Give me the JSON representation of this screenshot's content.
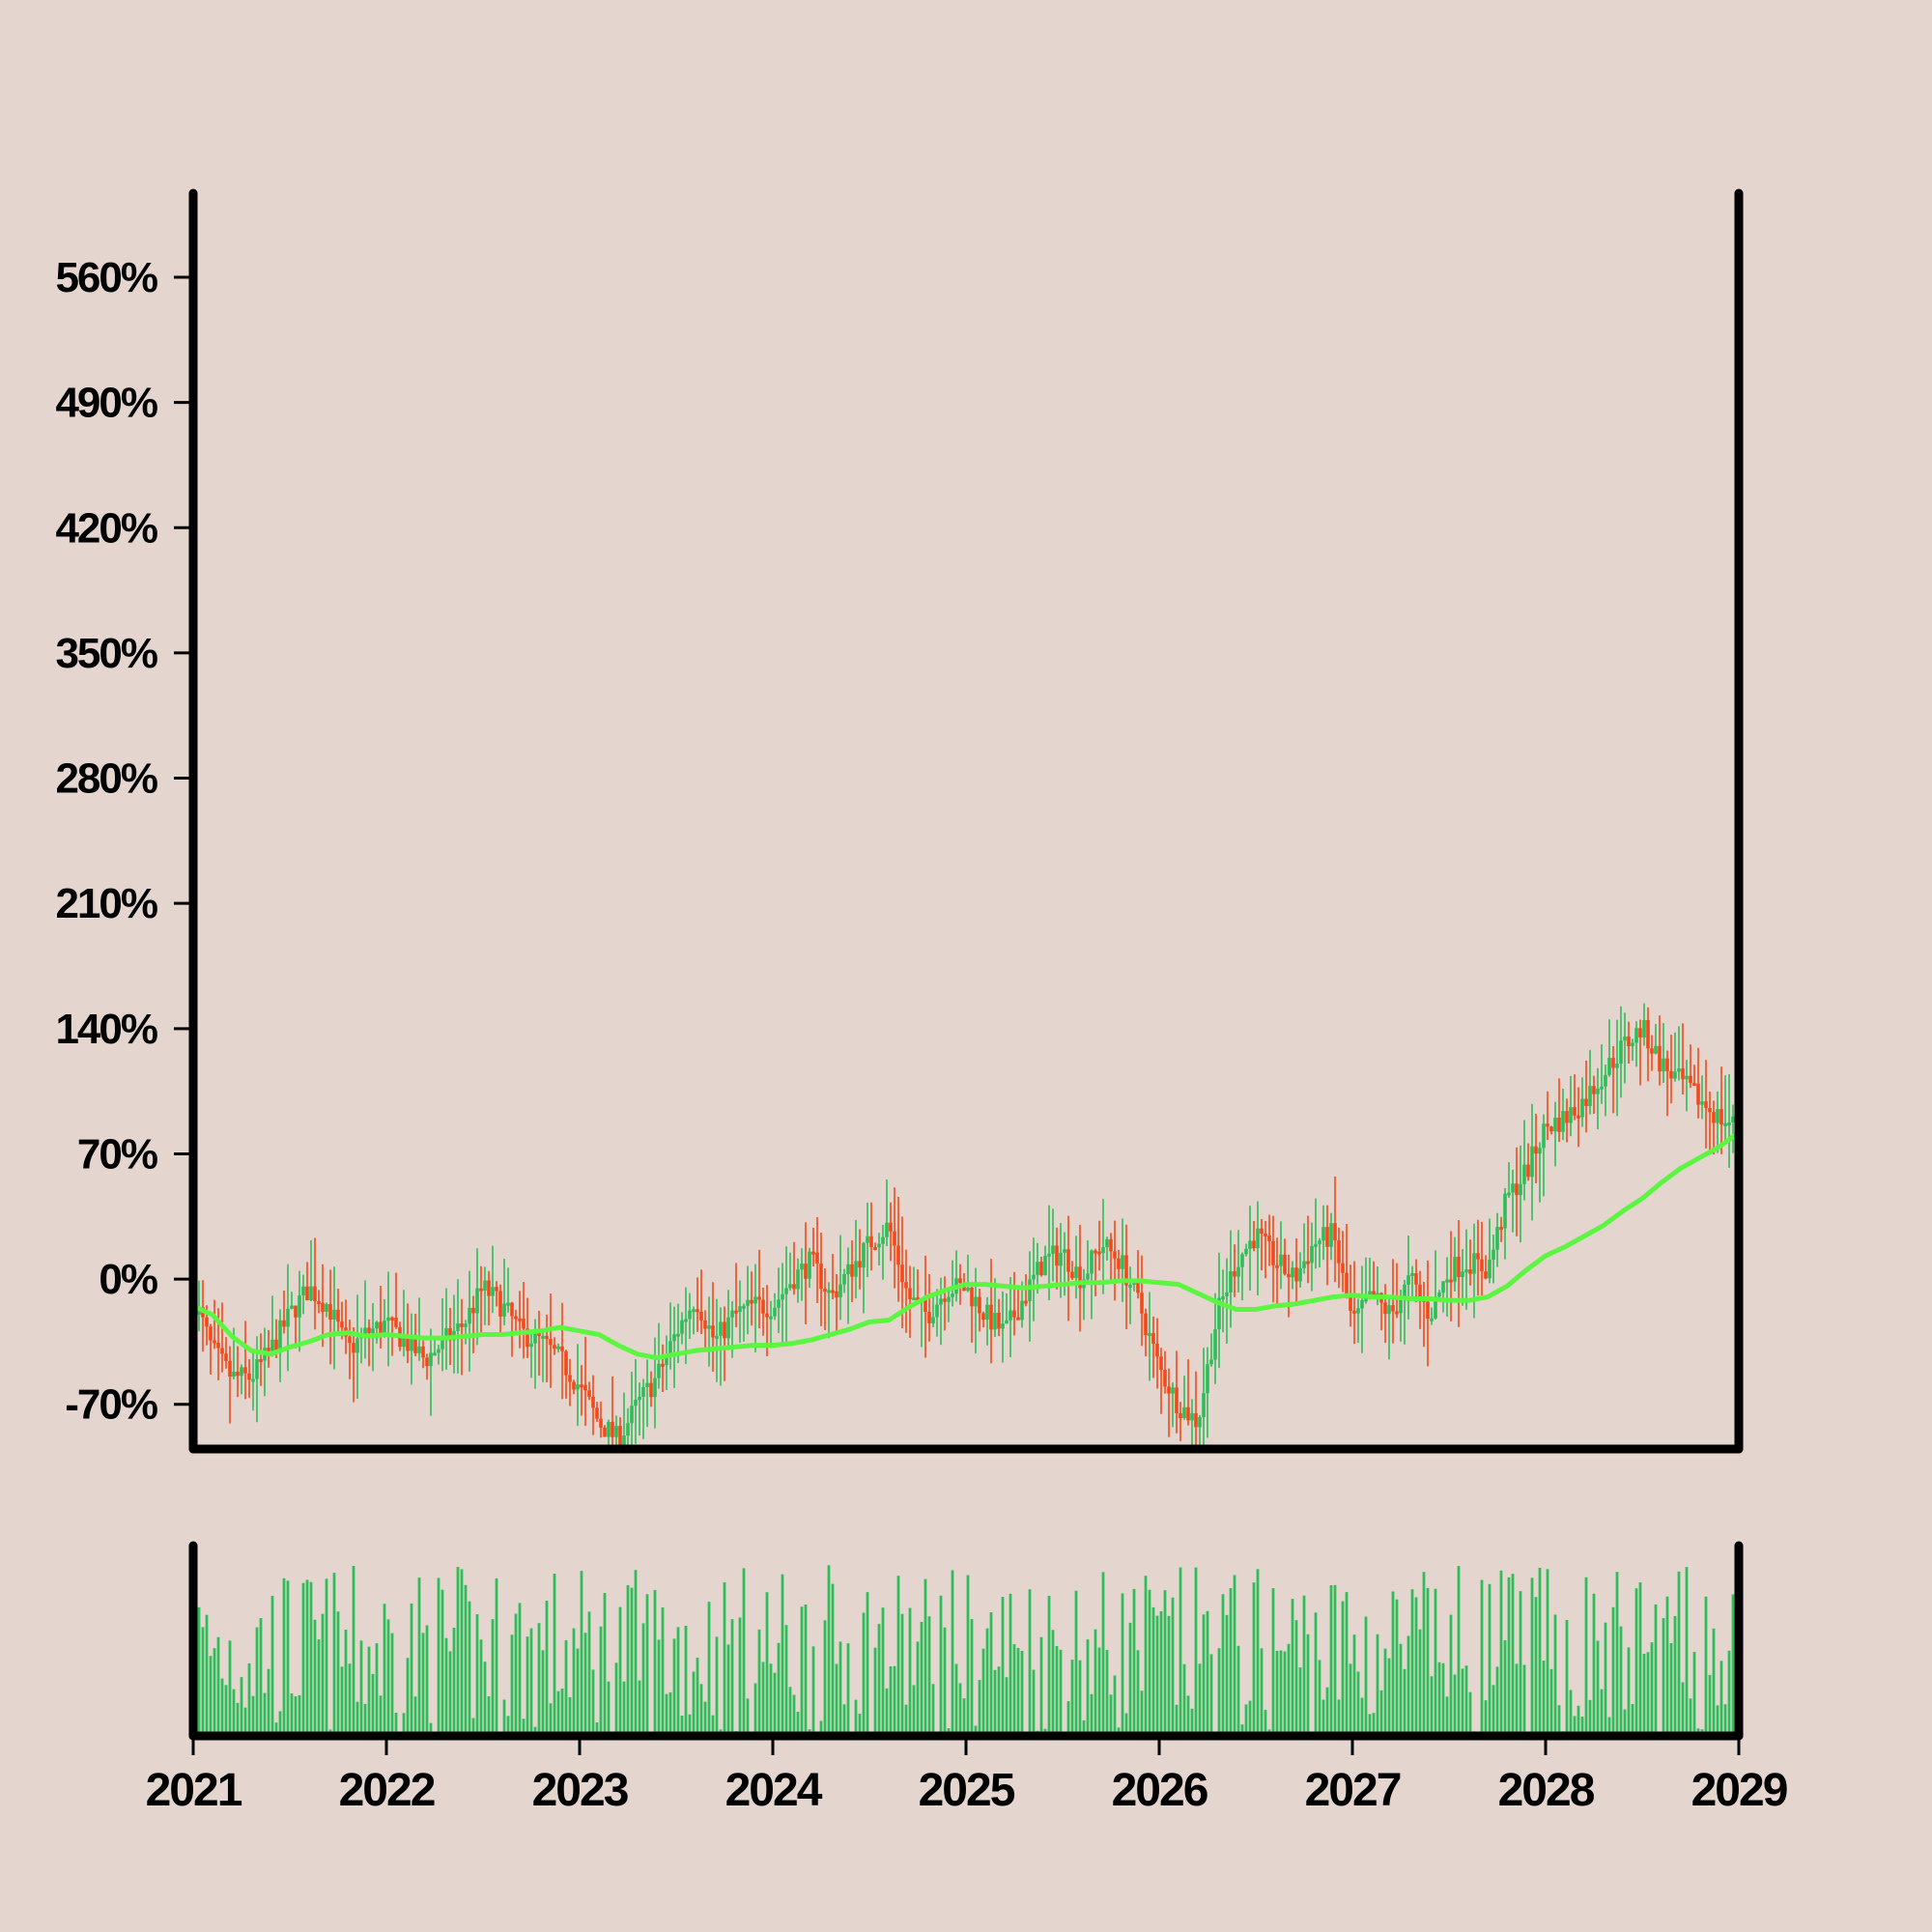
{
  "chart_data": [
    {
      "type": "candlestick",
      "title": "",
      "xlabel": "",
      "ylabel": "",
      "x_ticks": [
        "2021",
        "2022",
        "2023",
        "2024",
        "2025",
        "2026",
        "2027",
        "2028",
        "2029"
      ],
      "xlim": [
        2021.0,
        2029.0
      ],
      "y_ticks": [
        "-70%",
        "0%",
        "70%",
        "140%",
        "210%",
        "280%",
        "350%",
        "420%",
        "490%",
        "560%"
      ],
      "y_tick_values": [
        -70,
        0,
        70,
        140,
        210,
        280,
        350,
        420,
        490,
        560
      ],
      "ylim": [
        -95,
        607
      ],
      "grid": false,
      "colors": {
        "up": "#2ebd59",
        "down": "#f04a1a",
        "moving_average": "#5cf542",
        "background": "#e5d5cf",
        "axis": "#000000"
      },
      "series": [
        {
          "kind": "close",
          "x": [
            2021.0,
            2021.1,
            2021.2,
            2021.3,
            2021.4,
            2021.5,
            2021.6,
            2021.7,
            2021.8,
            2021.9,
            2022.0,
            2022.1,
            2022.2,
            2022.3,
            2022.4,
            2022.5,
            2022.6,
            2022.7,
            2022.8,
            2022.9,
            2023.0,
            2023.1,
            2023.2,
            2023.3,
            2023.4,
            2023.5,
            2023.6,
            2023.7,
            2023.8,
            2023.9,
            2024.0,
            2024.1,
            2024.2,
            2024.3,
            2024.4,
            2024.5,
            2024.6,
            2024.7,
            2024.8,
            2024.9,
            2025.0,
            2025.1,
            2025.2,
            2025.3,
            2025.4,
            2025.5,
            2025.6,
            2025.7,
            2025.8,
            2025.9,
            2026.0,
            2026.1,
            2026.2,
            2026.3,
            2026.4,
            2026.5,
            2026.6,
            2026.7,
            2026.8,
            2026.9,
            2027.0,
            2027.1,
            2027.2,
            2027.3,
            2027.4,
            2027.5,
            2027.6,
            2027.7,
            2027.8,
            2027.9,
            2028.0,
            2028.1,
            2028.2,
            2028.3,
            2028.4,
            2028.5,
            2028.6,
            2028.7,
            2028.8,
            2028.9,
            2029.0
          ],
          "values": [
            -10,
            -40,
            -55,
            -55,
            -40,
            -20,
            -5,
            -15,
            -40,
            -30,
            -25,
            -35,
            -45,
            -35,
            -25,
            -5,
            -15,
            -30,
            -35,
            -45,
            -60,
            -80,
            -90,
            -70,
            -55,
            -30,
            -10,
            -35,
            -20,
            -15,
            -15,
            0,
            10,
            -10,
            5,
            20,
            30,
            -10,
            -20,
            -5,
            -5,
            -20,
            -30,
            -10,
            10,
            15,
            0,
            20,
            10,
            -15,
            -50,
            -70,
            -80,
            -20,
            10,
            25,
            10,
            0,
            20,
            25,
            -25,
            -10,
            -20,
            0,
            -20,
            5,
            10,
            5,
            45,
            60,
            85,
            90,
            100,
            115,
            130,
            140,
            120,
            110,
            100,
            90,
            85
          ]
        },
        {
          "kind": "moving_average",
          "x": [
            2021.0,
            2021.1,
            2021.2,
            2021.3,
            2021.4,
            2021.5,
            2021.6,
            2021.7,
            2021.8,
            2021.9,
            2022.0,
            2022.1,
            2022.2,
            2022.3,
            2022.4,
            2022.5,
            2022.6,
            2022.7,
            2022.8,
            2022.9,
            2023.0,
            2023.1,
            2023.2,
            2023.3,
            2023.4,
            2023.5,
            2023.6,
            2023.7,
            2023.8,
            2023.9,
            2024.0,
            2024.1,
            2024.2,
            2024.3,
            2024.4,
            2024.5,
            2024.6,
            2024.7,
            2024.8,
            2024.9,
            2025.0,
            2025.1,
            2025.2,
            2025.3,
            2025.4,
            2025.5,
            2025.6,
            2025.7,
            2025.8,
            2025.9,
            2026.0,
            2026.1,
            2026.2,
            2026.3,
            2026.4,
            2026.5,
            2026.6,
            2026.7,
            2026.8,
            2026.9,
            2027.0,
            2027.1,
            2027.2,
            2027.3,
            2027.4,
            2027.5,
            2027.6,
            2027.7,
            2027.8,
            2027.9,
            2028.0,
            2028.1,
            2028.2,
            2028.3,
            2028.4,
            2028.5,
            2028.6,
            2028.7,
            2028.8,
            2028.9,
            2029.0
          ],
          "values": [
            -15,
            -20,
            -32,
            -40,
            -42,
            -38,
            -35,
            -31,
            -30,
            -32,
            -31,
            -32,
            -33,
            -33,
            -32,
            -31,
            -31,
            -30,
            -29,
            -27,
            -29,
            -31,
            -37,
            -42,
            -44,
            -42,
            -40,
            -39,
            -38,
            -37,
            -37,
            -36,
            -34,
            -31,
            -28,
            -24,
            -23,
            -16,
            -10,
            -6,
            -3,
            -3,
            -4,
            -5,
            -4,
            -3,
            -2,
            -2,
            -1,
            -1,
            -2,
            -3,
            -8,
            -13,
            -17,
            -17,
            -15,
            -14,
            -12,
            -10,
            -9,
            -10,
            -10,
            -11,
            -11,
            -12,
            -12,
            -10,
            -4,
            5,
            13,
            18,
            24,
            30,
            38,
            45,
            54,
            62,
            68,
            74,
            82
          ]
        }
      ],
      "volume": {
        "type": "bar",
        "ylim": [
          0,
          100
        ]
      }
    }
  ]
}
